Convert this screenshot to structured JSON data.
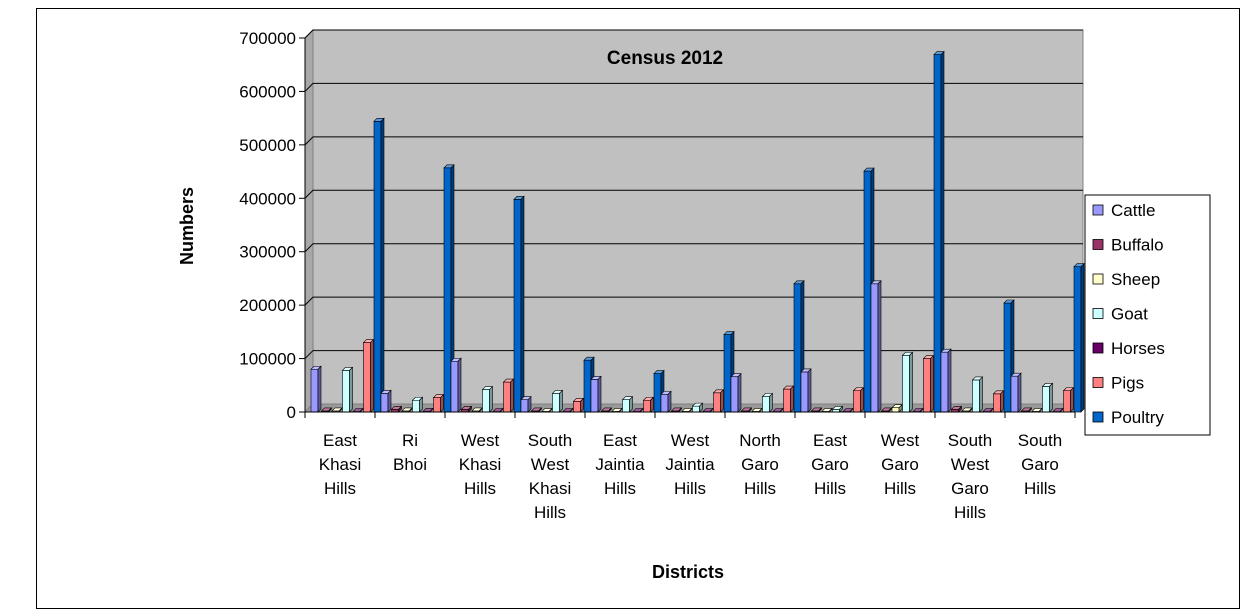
{
  "chart_data": {
    "type": "bar",
    "title": "Census 2012",
    "xlabel": "Districts",
    "ylabel": "Numbers",
    "ylim": [
      0,
      700000
    ],
    "yticks": [
      "0",
      "100000",
      "200000",
      "300000",
      "400000",
      "500000",
      "600000",
      "700000"
    ],
    "grid": true,
    "legend_position": "right",
    "categories": [
      [
        "East",
        "Khasi",
        "Hills"
      ],
      [
        "Ri",
        "Bhoi"
      ],
      [
        "West",
        "Khasi",
        "Hills"
      ],
      [
        "South",
        "West",
        "Khasi",
        "Hills"
      ],
      [
        "East",
        "Jaintia",
        "Hills"
      ],
      [
        "West",
        "Jaintia",
        "Hills"
      ],
      [
        "North",
        "Garo",
        "Hills"
      ],
      [
        "East",
        "Garo",
        "Hills"
      ],
      [
        "West",
        "Garo",
        "Hills"
      ],
      [
        "South",
        "West",
        "Garo",
        "Hills"
      ],
      [
        "South",
        "Garo",
        "Hills"
      ]
    ],
    "series": [
      {
        "name": "Cattle",
        "color": "#9999ff",
        "values": [
          80000,
          35000,
          95000,
          23000,
          61000,
          33000,
          66000,
          75000,
          240000,
          112000,
          67000
        ]
      },
      {
        "name": "Buffalo",
        "color": "#993366",
        "values": [
          2000,
          5000,
          5000,
          2000,
          2000,
          2000,
          2000,
          2000,
          2000,
          5000,
          2000
        ]
      },
      {
        "name": "Sheep",
        "color": "#ffffcc",
        "values": [
          2000,
          2000,
          2000,
          1000,
          1000,
          1000,
          1000,
          1000,
          8000,
          2000,
          1000
        ]
      },
      {
        "name": "Goat",
        "color": "#ccffff",
        "values": [
          78000,
          22000,
          42000,
          35000,
          23000,
          11000,
          29000,
          5000,
          106000,
          60000,
          48000
        ]
      },
      {
        "name": " Horses",
        "color": "#660066",
        "values": [
          500,
          1000,
          500,
          500,
          500,
          500,
          500,
          500,
          500,
          500,
          500
        ]
      },
      {
        "name": "Pigs",
        "color": "#ff8080",
        "values": [
          130000,
          27000,
          56000,
          20000,
          22000,
          36000,
          43000,
          40000,
          100000,
          34000,
          40000
        ]
      },
      {
        "name": "Poultry",
        "color": "#0066cc",
        "values": [
          544000,
          457000,
          398000,
          97000,
          72000,
          145000,
          240000,
          451000,
          669000,
          204000,
          272000
        ]
      }
    ]
  }
}
